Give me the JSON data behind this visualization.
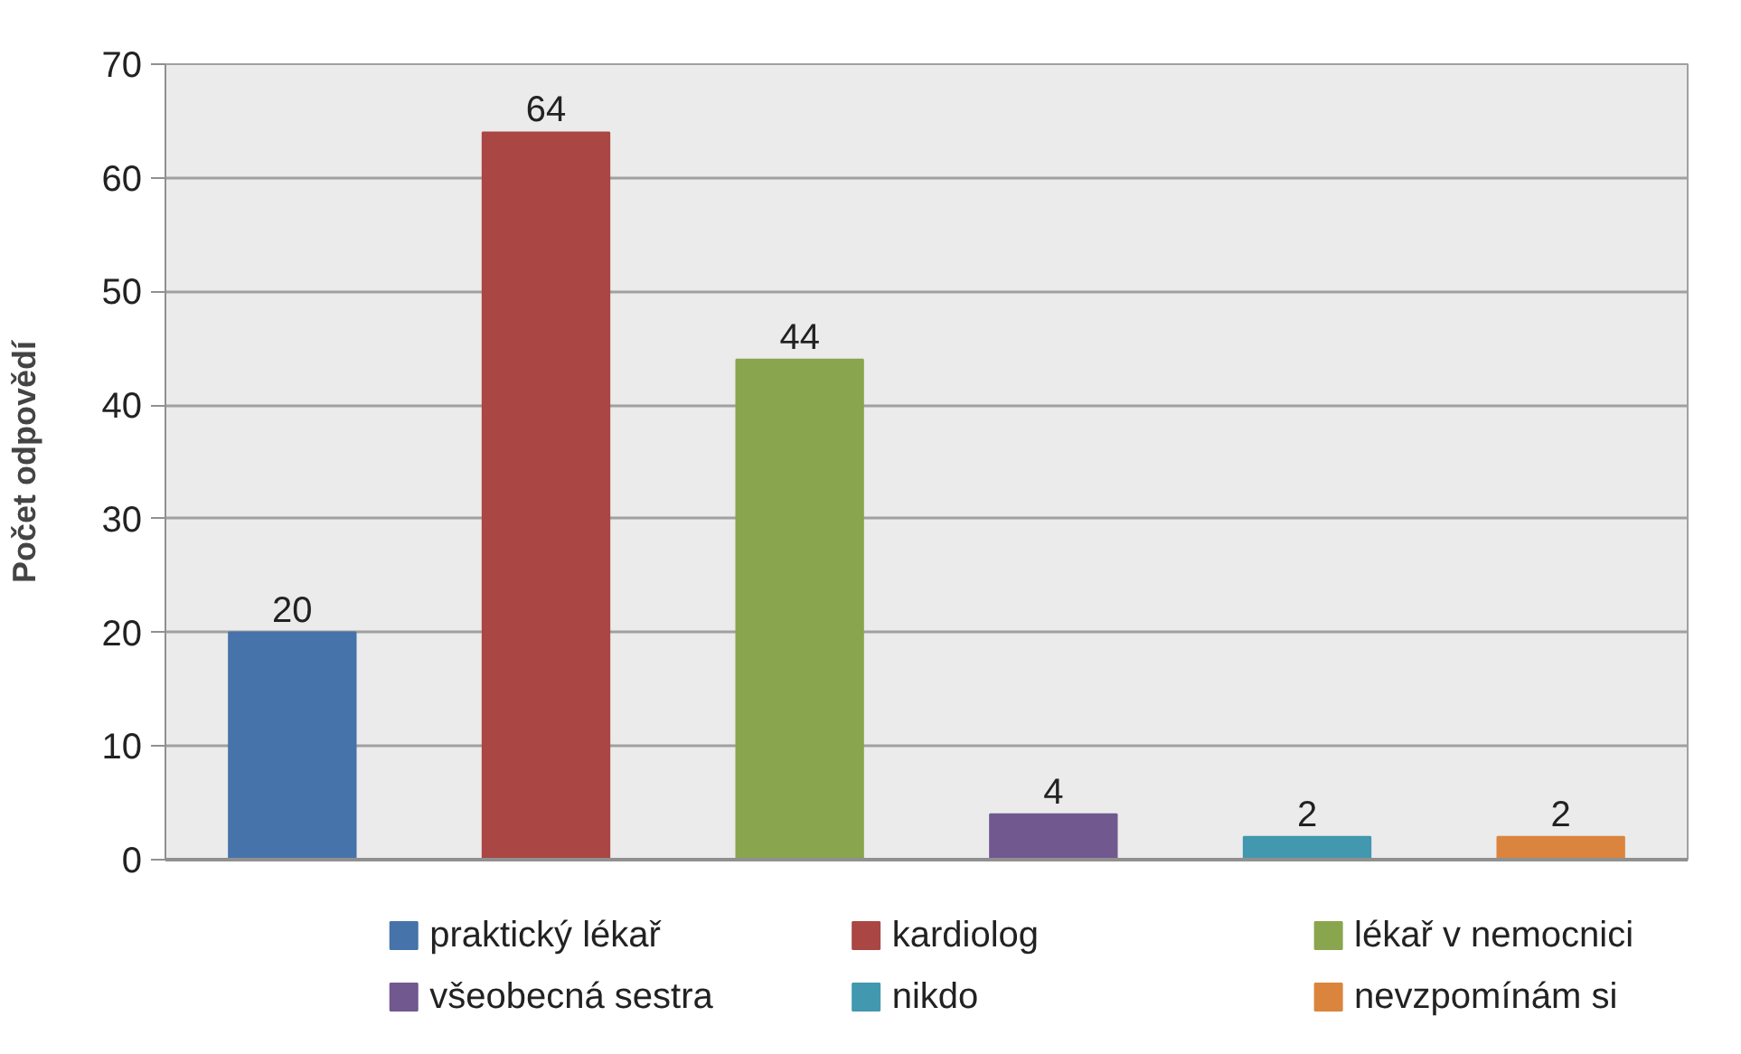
{
  "chart_data": {
    "type": "bar",
    "ylabel": "Počet odpovědí",
    "categories": [
      null,
      null,
      null,
      null,
      null,
      null
    ],
    "series": [
      {
        "name": "praktický lékař",
        "color": "#4673aa",
        "values": [
          20,
          null,
          null,
          null,
          null,
          null
        ]
      },
      {
        "name": "kardiolog",
        "color": "#aa4643",
        "values": [
          null,
          64,
          null,
          null,
          null,
          null
        ]
      },
      {
        "name": "lékař v nemocnici",
        "color": "#89a54e",
        "values": [
          null,
          null,
          44,
          null,
          null,
          null
        ]
      },
      {
        "name": "všeobecná sestra",
        "color": "#71588f",
        "values": [
          null,
          null,
          null,
          4,
          null,
          null
        ]
      },
      {
        "name": "nikdo",
        "color": "#4198af",
        "values": [
          null,
          null,
          null,
          null,
          2,
          null
        ]
      },
      {
        "name": "nevzpomínám si",
        "color": "#db843d",
        "values": [
          null,
          null,
          null,
          null,
          null,
          2
        ]
      }
    ],
    "ylim": [
      0,
      70
    ],
    "yticks": [
      0,
      10,
      20,
      30,
      40,
      50,
      60,
      70
    ],
    "data_labels": true,
    "grid": "y",
    "legend": "bottom",
    "tick_labels": "y"
  }
}
